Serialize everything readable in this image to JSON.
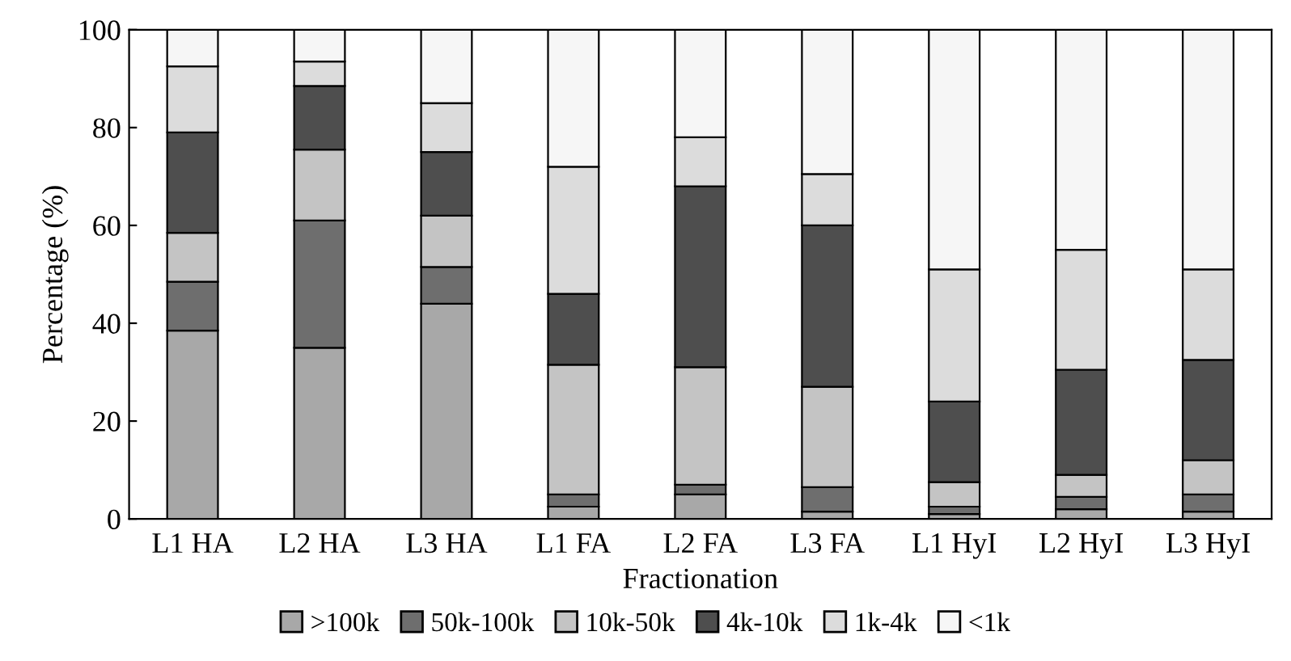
{
  "chart_data": {
    "type": "bar",
    "stacked": true,
    "xlabel": "Fractionation",
    "ylabel": "Percentage (%)",
    "categories": [
      "L1 HA",
      "L2 HA",
      "L3 HA",
      "L1 FA",
      "L2 FA",
      "L3 FA",
      "L1 HyI",
      "L2 HyI",
      "L3 HyI"
    ],
    "series": [
      {
        "name": ">100k",
        "color": "#a8a8a8",
        "values": [
          38.5,
          35,
          44,
          2.5,
          5,
          1.5,
          1,
          2,
          1.5
        ]
      },
      {
        "name": "50k-100k",
        "color": "#6e6e6e",
        "values": [
          10,
          26,
          7.5,
          2.5,
          2,
          5,
          1.5,
          2.5,
          3.5
        ]
      },
      {
        "name": "10k-50k",
        "color": "#c4c4c4",
        "values": [
          10,
          14.5,
          10.5,
          26.5,
          24,
          20.5,
          5,
          4.5,
          7
        ]
      },
      {
        "name": "4k-10k",
        "color": "#4e4e4e",
        "values": [
          20.5,
          13,
          13,
          14.5,
          37,
          33,
          16.5,
          21.5,
          20.5
        ]
      },
      {
        "name": "1k-4k",
        "color": "#dcdcdc",
        "values": [
          13.5,
          5,
          10,
          26,
          10,
          10.5,
          27,
          24.5,
          18.5
        ]
      },
      {
        "name": "<1k",
        "color": "#f6f6f6",
        "values": [
          7.5,
          6.5,
          15,
          28,
          22,
          29.5,
          49,
          45,
          49
        ]
      }
    ],
    "ylim": [
      0,
      100
    ],
    "yticks": [
      0,
      20,
      40,
      60,
      80,
      100
    ],
    "grid": false,
    "legend": "bottom"
  }
}
